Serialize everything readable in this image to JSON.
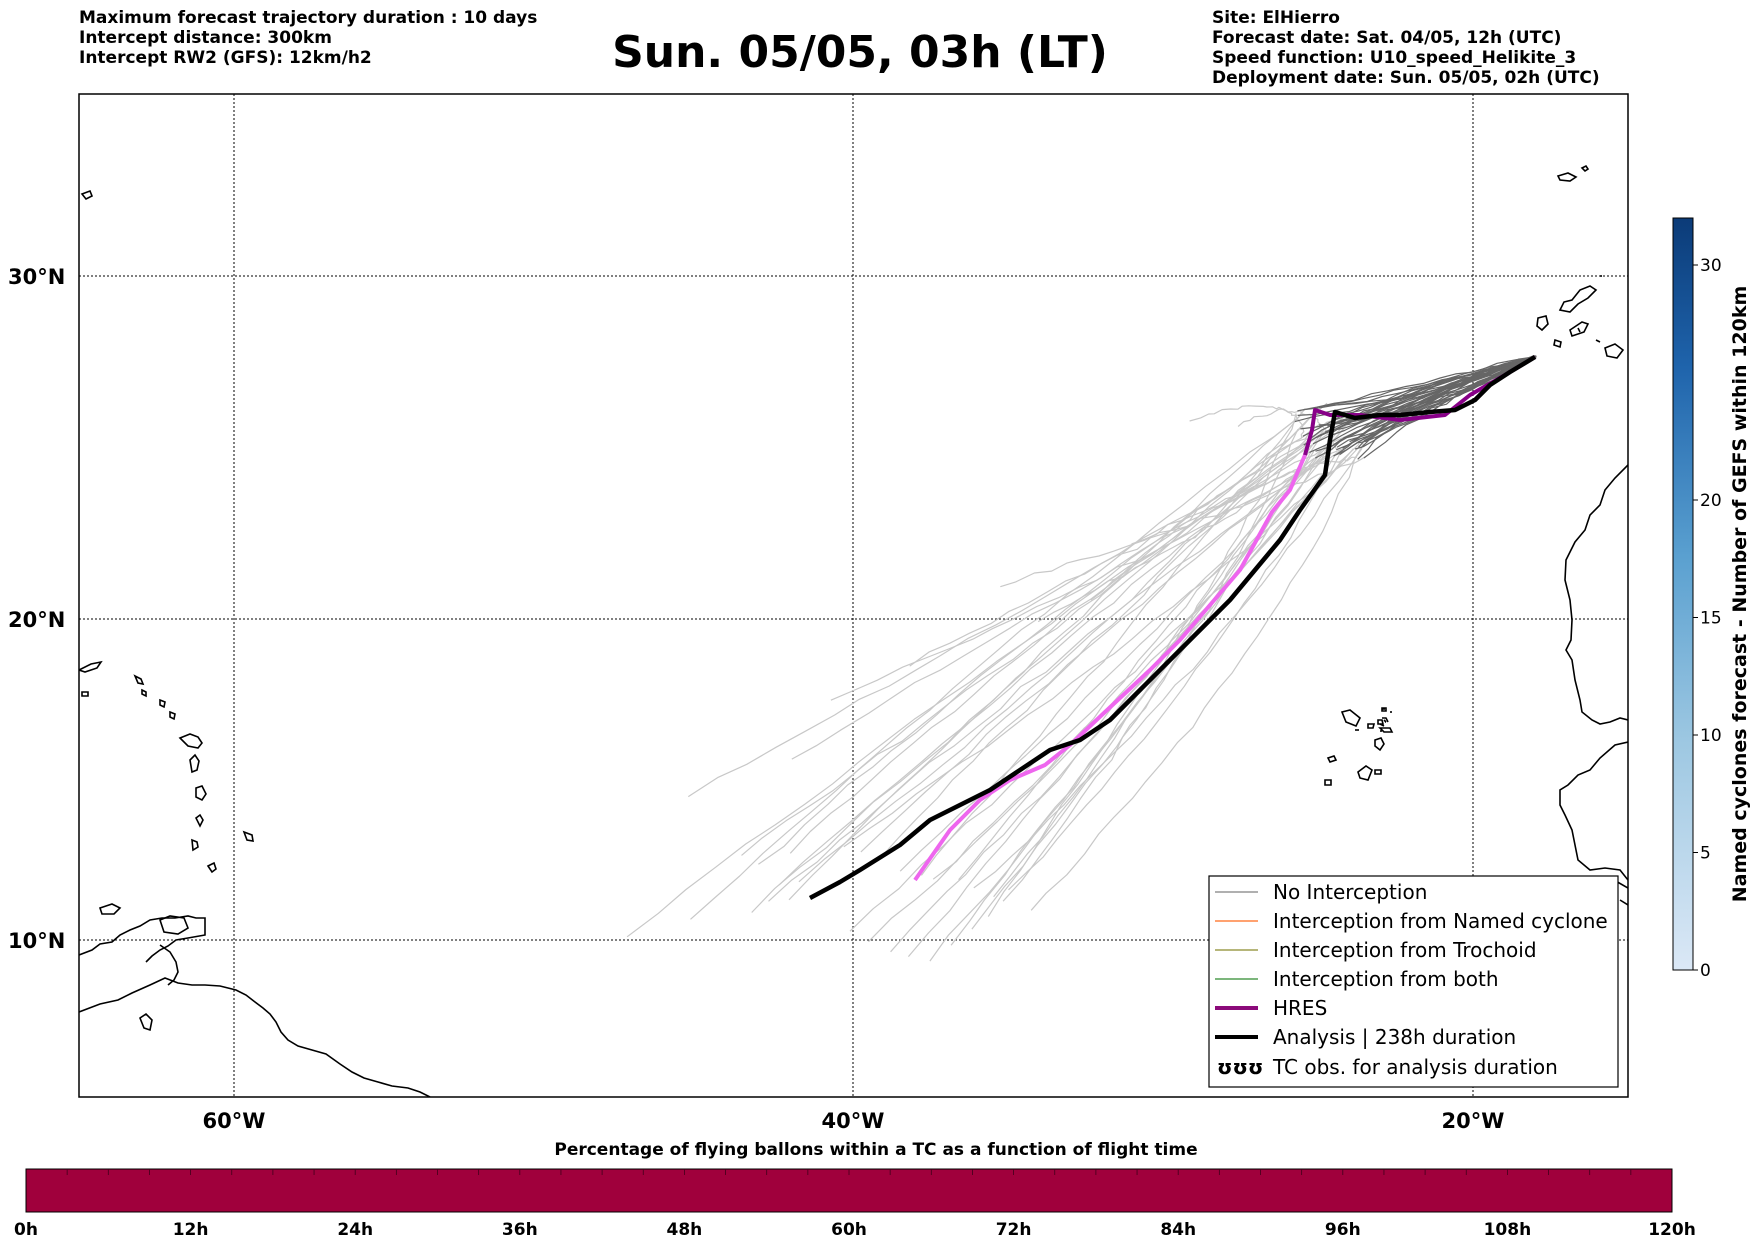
{
  "header_left": [
    "Maximum forecast trajectory duration : 10 days",
    "Intercept distance: 300km",
    "Intercept RW2 (GFS):  12km/h2"
  ],
  "title": "Sun. 05/05, 03h (LT)",
  "header_right": [
    "Site: ElHierro",
    "Forecast date: Sat. 04/05, 12h (UTC)",
    "Speed function: U10_speed_Helikite_3",
    "Deployment date: Sun. 05/05, 02h (UTC)"
  ],
  "map": {
    "lat_labels": [
      "30°N",
      "20°N",
      "10°N"
    ],
    "lon_labels": [
      "60°W",
      "40°W",
      "20°W"
    ],
    "lon_range": [
      -65,
      -15
    ],
    "lat_range": [
      5,
      35
    ],
    "grid": true
  },
  "legend": {
    "placement": "lower-right",
    "entries": [
      {
        "label": "No Interception",
        "color": "#808080",
        "style": "thin"
      },
      {
        "label": "Interception from Named cyclone",
        "color": "#ff6a1a",
        "style": "thin"
      },
      {
        "label": "Interception from Trochoid",
        "color": "#8b8b2a",
        "style": "thin"
      },
      {
        "label": "Interception from both",
        "color": "#2e8b2e",
        "style": "thin"
      },
      {
        "label": "HRES",
        "color": "#8b0a7a",
        "style": "thick"
      },
      {
        "label": "Analysis | 238h duration",
        "color": "#000000",
        "style": "thick"
      },
      {
        "label": "TC obs. for analysis duration",
        "color": "#000000",
        "style": "symbol",
        "symbol": "ʊʊʊ"
      }
    ]
  },
  "colorbar": {
    "title": "Named cyclones forecast - Number of GEFS within 120km",
    "ticks": [
      "0",
      "5",
      "10",
      "15",
      "20",
      "30"
    ],
    "range": [
      0,
      32
    ]
  },
  "bottom_bar": {
    "title": "Percentage of flying ballons within a TC as a function of flight time",
    "hours": [
      "0h",
      "12h",
      "24h",
      "36h",
      "48h",
      "60h",
      "72h",
      "84h",
      "96h",
      "108h",
      "120h"
    ],
    "fill_color": "#a0003c"
  },
  "colors": {
    "trajectory_light": "#c8c8c8",
    "trajectory_dark": "#666666",
    "hres_light": "#ee66ee",
    "hres_dark": "#880088",
    "analysis": "#000000"
  }
}
